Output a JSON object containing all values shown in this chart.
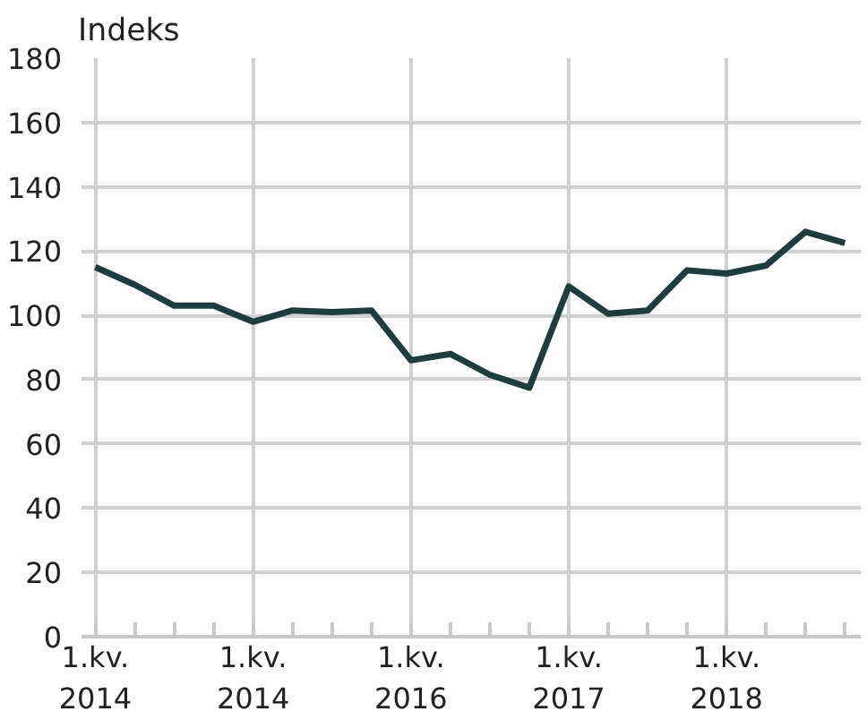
{
  "chart_data": {
    "type": "line",
    "ylabel": "Indeks",
    "categories": [
      "1.kv.\n2014",
      null,
      null,
      null,
      "1.kv.\n2014",
      null,
      null,
      null,
      "1.kv.\n2016",
      null,
      null,
      null,
      "1.kv.\n2017",
      null,
      null,
      null,
      "1.kv.\n2018",
      null,
      null,
      null
    ],
    "series": [
      {
        "color": "#1e3d40",
        "values": [
          115,
          109.5,
          103,
          103,
          98,
          101.5,
          101,
          101.5,
          86,
          88,
          81.5,
          77.5,
          109,
          100.5,
          101.5,
          114,
          113,
          115.5,
          126,
          122.5
        ]
      }
    ],
    "ylim": [
      0,
      180
    ],
    "yticks": [
      0,
      20,
      40,
      60,
      80,
      100,
      120,
      140,
      160,
      180
    ],
    "grid": true,
    "line_style": "solid",
    "marker": "none"
  }
}
